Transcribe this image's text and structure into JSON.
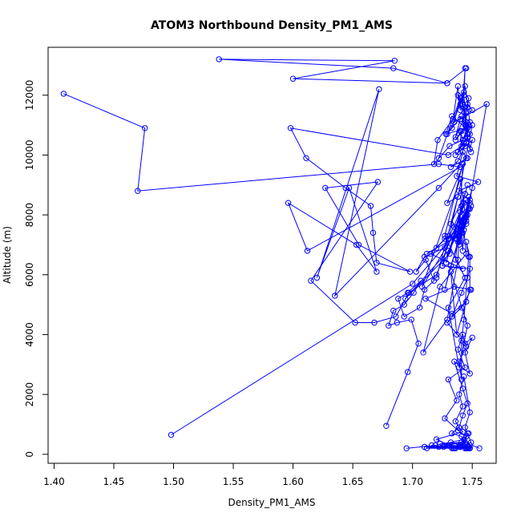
{
  "chart_data": {
    "type": "line",
    "title": "ATOM3 Northbound Density_PM1_AMS",
    "xlabel": "Density_PM1_AMS",
    "ylabel": "Altitude (m)",
    "xlim": [
      1.395,
      1.77
    ],
    "ylim": [
      -300,
      13600
    ],
    "x_ticks": [
      1.4,
      1.45,
      1.5,
      1.55,
      1.6,
      1.65,
      1.7,
      1.75
    ],
    "x_tick_labels": [
      "1.40",
      "1.45",
      "1.50",
      "1.55",
      "1.60",
      "1.65",
      "1.70",
      "1.75"
    ],
    "y_ticks": [
      0,
      2000,
      4000,
      6000,
      8000,
      10000,
      12000
    ],
    "y_tick_labels": [
      "0",
      "2000",
      "4000",
      "6000",
      "8000",
      "10000",
      "12000"
    ],
    "grid": false,
    "legend": "none",
    "marker": "open-circle",
    "series_color": "#0000ff",
    "series": [
      {
        "x": [
          1.498,
          1.7,
          1.745,
          1.74,
          1.708,
          1.745,
          1.73,
          1.743,
          1.728,
          1.744,
          1.732,
          1.72,
          1.738,
          1.725,
          1.747,
          1.735,
          1.741,
          1.732,
          1.727,
          1.75,
          1.745,
          1.74,
          1.737,
          1.748,
          1.735,
          1.731,
          1.694,
          1.73,
          1.74,
          1.745,
          1.749,
          1.739,
          1.745,
          1.748,
          1.743,
          1.742,
          1.741,
          1.747,
          1.744,
          1.738,
          1.748,
          1.739,
          1.742,
          1.746,
          1.762,
          1.735,
          1.729,
          1.741,
          1.749,
          1.74,
          1.743,
          1.747,
          1.746,
          1.738,
          1.74,
          1.738,
          1.734,
          1.721,
          1.718,
          1.731,
          1.742,
          1.746,
          1.728,
          1.733,
          1.745,
          1.743,
          1.741,
          1.745,
          1.745,
          1.736,
          1.74,
          1.75,
          1.746,
          1.744,
          1.748,
          1.741,
          1.74,
          1.743,
          1.747,
          1.738,
          1.746,
          1.748,
          1.75,
          1.736,
          1.744,
          1.745,
          1.738,
          1.732,
          1.746,
          1.742,
          1.737,
          1.755,
          1.739,
          1.744,
          1.746
        ],
        "y": [
          650,
          5700,
          7800,
          9200,
          5600,
          8000,
          7200,
          8400,
          6400,
          8700,
          7700,
          5900,
          8600,
          6300,
          8200,
          7600,
          7400,
          6300,
          5500,
          8900,
          8100,
          7800,
          7200,
          8400,
          7300,
          6700,
          5200,
          6800,
          7600,
          7900,
          8300,
          7100,
          7700,
          8500,
          7500,
          6800,
          7400,
          8600,
          7900,
          7100,
          8200,
          7000,
          7400,
          8000,
          11700,
          11100,
          10700,
          11300,
          10100,
          11700,
          12100,
          11900,
          11600,
          12000,
          11500,
          12300,
          11200,
          10500,
          9700,
          10300,
          10500,
          10900,
          10700,
          11300,
          10900,
          11600,
          11800,
          11100,
          11400,
          10600,
          11200,
          11500,
          11700,
          11000,
          10700,
          10300,
          10800,
          10400,
          11000,
          10100,
          10600,
          10200,
          10500,
          10000,
          10300,
          10400,
          9800,
          9600,
          9900,
          10100,
          9300,
          9100,
          8800,
          8700,
          9000
        ]
      },
      {
        "x": [
          1.678,
          1.696,
          1.705,
          1.699,
          1.687,
          1.68,
          1.684,
          1.693,
          1.701,
          1.707,
          1.696,
          1.688,
          1.693,
          1.706,
          1.71,
          1.718,
          1.711,
          1.703,
          1.71,
          1.727,
          1.73,
          1.72,
          1.712,
          1.738,
          1.727,
          1.715,
          1.742,
          1.725,
          1.748,
          1.746,
          1.741,
          1.733,
          1.741,
          1.749,
          1.735,
          1.711,
          1.733,
          1.745,
          1.729,
          1.744,
          1.75,
          1.744,
          1.748,
          1.735,
          1.742,
          1.746,
          1.742,
          1.739,
          1.736,
          1.742,
          1.739,
          1.743,
          1.748,
          1.744,
          1.746,
          1.749,
          1.74,
          1.747,
          1.742,
          1.736,
          1.746,
          1.748
        ],
        "y": [
          950,
          2750,
          3700,
          4500,
          4400,
          4300,
          4800,
          5000,
          5400,
          5800,
          5400,
          5200,
          4600,
          4900,
          5500,
          5800,
          6500,
          6100,
          6600,
          6900,
          7300,
          6900,
          6700,
          7300,
          7200,
          6700,
          6200,
          6300,
          6200,
          5900,
          5400,
          4600,
          4900,
          5500,
          5600,
          5200,
          4700,
          5100,
          4400,
          3700,
          3900,
          3400,
          2700,
          3100,
          2200,
          1700,
          1300,
          900,
          1100,
          1600,
          2000,
          2600,
          1400,
          900,
          700,
          400,
          250,
          200,
          300,
          200,
          250,
          200
        ]
      },
      {
        "x": [
          1.739,
          1.735,
          1.722,
          1.745,
          1.748,
          1.735,
          1.71,
          1.73,
          1.712,
          1.744,
          1.726,
          1.716,
          1.733,
          1.74,
          1.723,
          1.741,
          1.729,
          1.734
        ],
        "y": [
          250,
          300,
          250,
          200,
          300,
          200,
          250,
          300,
          200,
          200,
          250,
          300,
          200,
          250,
          350,
          400,
          300,
          200
        ]
      },
      {
        "x": [
          1.756,
          1.744,
          1.741,
          1.733,
          1.739,
          1.742,
          1.72,
          1.731,
          1.746,
          1.745
        ],
        "y": [
          200,
          400,
          600,
          700,
          900,
          750,
          500,
          300,
          200,
          220
        ]
      },
      {
        "x": [
          1.695,
          1.719,
          1.735,
          1.742,
          1.747,
          1.743,
          1.732,
          1.74,
          1.748,
          1.747
        ],
        "y": [
          200,
          300,
          200,
          350,
          700,
          500,
          400,
          300,
          200,
          250
        ]
      }
    ],
    "northwest_trace": [
      {
        "x": [
          1.722,
          1.74,
          1.733,
          1.744,
          1.748,
          1.736,
          1.741,
          1.745,
          1.743,
          1.744,
          1.742,
          1.746,
          1.745,
          1.73,
          1.598,
          1.611,
          1.644,
          1.665,
          1.667,
          1.67,
          1.698,
          1.655,
          1.627,
          1.671,
          1.615,
          1.652,
          1.668,
          1.686,
          1.697,
          1.72,
          1.745,
          1.74,
          1.736,
          1.741,
          1.745,
          1.723,
          1.709,
          1.729,
          1.738,
          1.742,
          1.727,
          1.744,
          1.73,
          1.739,
          1.746,
          1.732,
          1.737,
          1.748,
          1.748,
          1.745,
          1.747,
          1.743,
          1.741,
          1.741,
          1.739,
          1.745,
          1.742,
          1.738,
          1.744,
          1.73,
          1.737,
          1.727,
          1.738,
          1.745,
          1.744
        ],
        "y": [
          9900,
          11900,
          10900,
          12300,
          11100,
          10500,
          10800,
          11000,
          12000,
          12900,
          11700,
          10700,
          10400,
          10000,
          10900,
          9900,
          8900,
          8300,
          7400,
          6400,
          6100,
          7000,
          8900,
          9100,
          5800,
          4400,
          4400,
          4600,
          5400,
          6000,
          8500,
          8100,
          6500,
          8300,
          6700,
          5600,
          3400,
          4500,
          6500,
          9700,
          7300,
          5900,
          4900,
          2900,
          4300,
          6100,
          4000,
          5500,
          6600,
          7100,
          6600,
          4500,
          3800,
          2500,
          3100,
          3600,
          4000,
          3500,
          2900,
          2500,
          1800,
          1200,
          800,
          600,
          350
        ]
      },
      {
        "x": [
          1.745,
          1.729,
          1.6,
          1.685,
          1.538,
          1.684,
          1.729
        ],
        "y": [
          12900,
          12400,
          12550,
          13150,
          13200,
          12900,
          12400
        ]
      },
      {
        "x": [
          1.408,
          1.476,
          1.47,
          1.722,
          1.74,
          1.612,
          1.596,
          1.653,
          1.67,
          1.647,
          1.62,
          1.672,
          1.635,
          1.722,
          1.745,
          1.729,
          1.738,
          1.75,
          1.742
        ],
        "y": [
          12050,
          10900,
          8800,
          9700,
          9600,
          6800,
          8400,
          7000,
          6100,
          8900,
          5900,
          12200,
          5300,
          8900,
          9900,
          8400,
          8600,
          11000,
          10500
        ]
      }
    ]
  }
}
